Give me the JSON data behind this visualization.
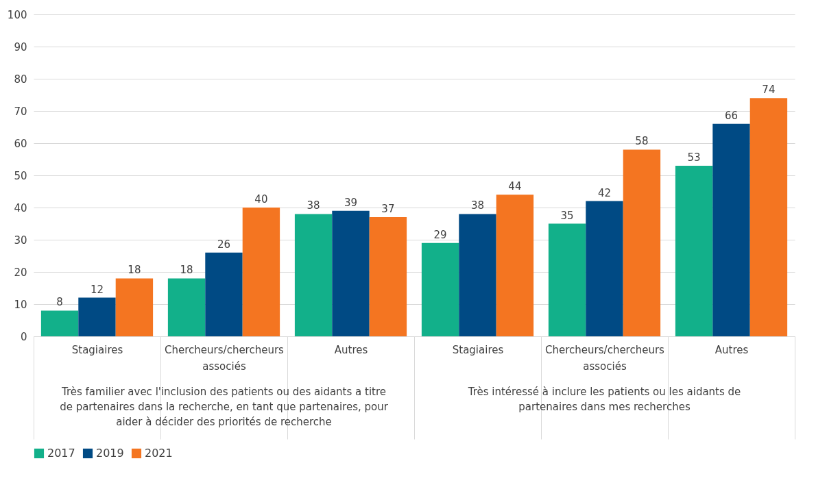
{
  "chart_data": {
    "type": "bar",
    "categories": [
      "Stagiaires",
      "Chercheurs/chercheurs associés",
      "Autres",
      "Stagiaires",
      "Chercheurs/chercheurs associés",
      "Autres"
    ],
    "annotations": [
      "Très familier avec l'inclusion des patients ou des aidants a titre de partenaires dans la recherche, en tant que partenaires, pour aider à décider des priorités de recherche",
      "Très intéressé à inclure les patients ou les aidants de partenaires dans mes recherches"
    ],
    "series": [
      {
        "name": "2017",
        "color": "#12b08a",
        "values": [
          8,
          18,
          38,
          29,
          35,
          53
        ]
      },
      {
        "name": "2019",
        "color": "#004a84",
        "values": [
          12,
          26,
          39,
          38,
          42,
          66
        ]
      },
      {
        "name": "2021",
        "color": "#f47521",
        "values": [
          18,
          40,
          37,
          44,
          58,
          74
        ]
      }
    ],
    "ylim": [
      0,
      100
    ],
    "yticks": [
      0,
      10,
      20,
      30,
      40,
      50,
      60,
      70,
      80,
      90,
      100
    ],
    "grid": "y",
    "legend": "bottom",
    "data_labels": true
  }
}
